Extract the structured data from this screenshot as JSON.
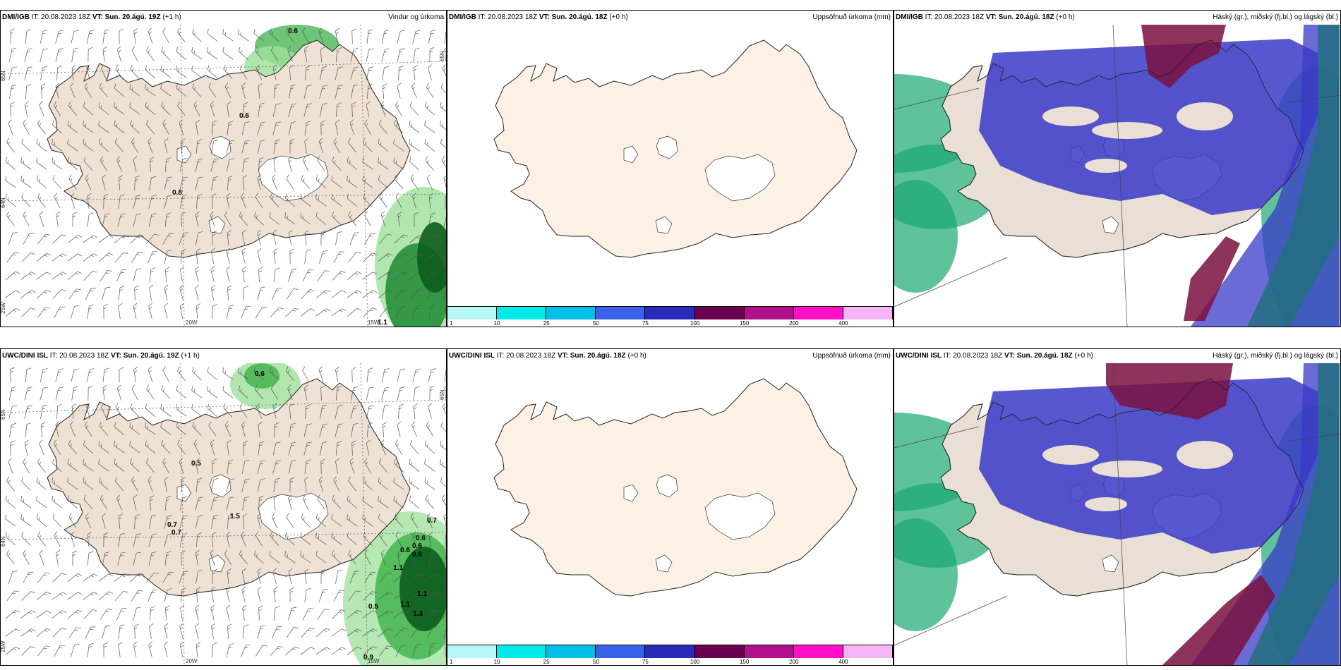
{
  "panels": [
    {
      "id": "p1",
      "model": "DMI/IGB",
      "it_label": "IT:",
      "it": "20.08.2023 18Z",
      "vt_label": "VT:",
      "vt": "Sun. 20.ágú. 19Z",
      "lead": "(+1 h)",
      "title": "Vindur og úrkoma",
      "kind": "wind",
      "labels": [
        "0.6",
        "0.6",
        "0.8",
        "1.1"
      ],
      "axis": [
        "65N",
        "65N",
        "64N",
        "25W",
        "20W",
        "15W"
      ]
    },
    {
      "id": "p2",
      "model": "DMI/IGB",
      "it_label": "IT:",
      "it": "20.08.2023 18Z",
      "vt_label": "VT:",
      "vt": "Sun. 20.ágú. 18Z",
      "lead": "(+0 h)",
      "title": "Uppsöfnuð úrkoma (mm)",
      "kind": "accum"
    },
    {
      "id": "p3",
      "model": "DMI/IGB",
      "it_label": "IT:",
      "it": "20.08.2023 18Z",
      "vt_label": "VT:",
      "vt": "Sun. 20.ágú. 18Z",
      "lead": "(+0 h)",
      "title": "Háský (gr.), miðský (fj.bl.) og lágský (bl.)",
      "kind": "cloud"
    },
    {
      "id": "p4",
      "model": "UWC/DINI ISL",
      "it_label": "IT:",
      "it": "20.08.2023 18Z",
      "vt_label": "VT:",
      "vt": "Sun. 20.ágú. 19Z",
      "lead": "(+1 h)",
      "title": "",
      "kind": "wind",
      "labels": [
        "0.6",
        "0.5",
        "0.7",
        "0.7",
        "1.5",
        "0.7",
        "0.6",
        "0.6",
        "0.6",
        "0.6",
        "1.1",
        "1.1",
        "1.1",
        "1.3",
        "0.5",
        "0.9"
      ],
      "axis": [
        "65N",
        "65N",
        "64N",
        "25W",
        "20W",
        "15W"
      ]
    },
    {
      "id": "p5",
      "model": "UWC/DINI ISL",
      "it_label": "IT:",
      "it": "20.08.2023 18Z",
      "vt_label": "VT:",
      "vt": "Sun. 20.ágú. 18Z",
      "lead": "(+0 h)",
      "title": "Uppsöfnuð úrkoma (mm)",
      "kind": "accum"
    },
    {
      "id": "p6",
      "model": "UWC/DINI ISL",
      "it_label": "IT:",
      "it": "20.08.2023 18Z",
      "vt_label": "VT:",
      "vt": "Sun. 20.ágú. 18Z",
      "lead": "(+0 h)",
      "title": "Háský (gr.), miðský (fj.bl.) og lágský (bl.)",
      "kind": "cloud"
    }
  ],
  "colorbar": {
    "ticks": [
      "1",
      "10",
      "25",
      "50",
      "75",
      "100",
      "150",
      "200",
      "400"
    ],
    "colors": [
      "#b7f7f7",
      "#00eaea",
      "#00c0e8",
      "#3a62e8",
      "#2a2ab8",
      "#6a0050",
      "#b0108c",
      "#ff10c8",
      "#f6b4f6"
    ]
  },
  "colors": {
    "land_wind": "#efe2d4",
    "land_accum": "#fdf1e5",
    "land_cloud": "#eadfd5",
    "high": "#7a1040",
    "mid": "#3a3ac8",
    "low": "#1aa870"
  }
}
